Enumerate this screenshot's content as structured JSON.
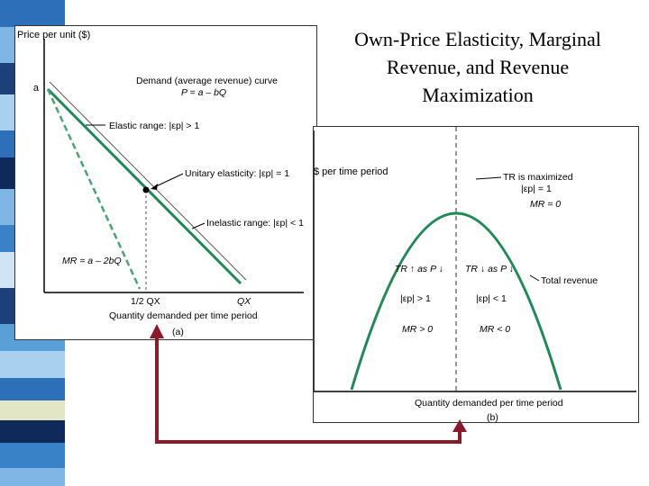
{
  "slide": {
    "title_lines": [
      "Own-Price Elasticity, Marginal",
      "Revenue, and Revenue",
      "Maximization"
    ],
    "colors": {
      "demand_line": "#1e8a55",
      "mr_line": "#4aa570",
      "arrow": "#8b1a2a",
      "tr_curve": "#1e8a55"
    }
  },
  "panel_a": {
    "y_axis_label": "Price per unit ($)",
    "intercept_label": "a",
    "demand_label_1": "Demand (average revenue) curve",
    "demand_label_2": "P = a – bQ",
    "elastic_label": "Elastic range: |εp| > 1",
    "unitary_label": "Unitary elasticity: |εp| = 1",
    "inelastic_label": "Inelastic range: |εp| < 1",
    "mr_label": "MR = a – 2bQ",
    "half_q_label": "1/2 QX",
    "q_label": "QX",
    "x_axis_label": "Quantity demanded per time period",
    "panel_tag": "(a)"
  },
  "panel_b": {
    "y_axis_label": "$ per time period",
    "max_label_1": "TR is maximized",
    "max_label_2": "|εp| = 1",
    "max_label_3": "MR = 0",
    "left_label_1": "TR ↑ as P ↓",
    "left_label_2": "|εp| > 1",
    "left_label_3": "MR > 0",
    "right_label_1": "TR ↓ as P ↓",
    "right_label_2": "|εp| < 1",
    "right_label_3": "MR < 0",
    "curve_label": "Total revenue",
    "x_axis_label": "Quantity demanded per time period",
    "panel_tag": "(b)"
  }
}
